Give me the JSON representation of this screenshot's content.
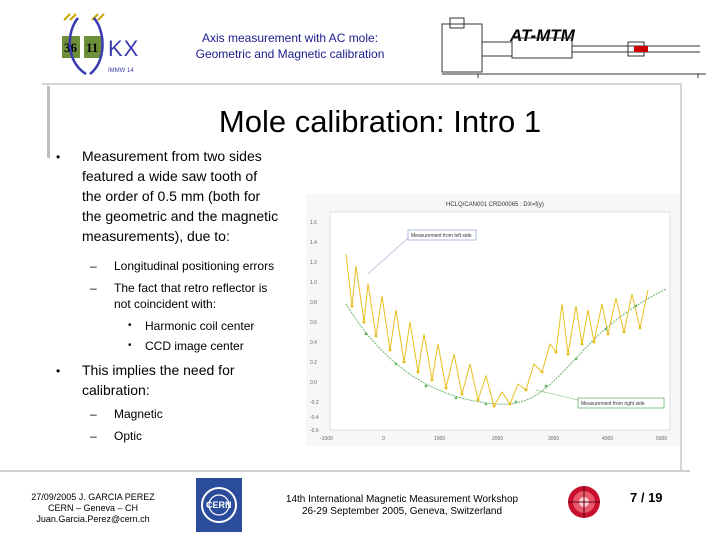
{
  "header": {
    "title_line1": "Axis measurement with AC mole:",
    "title_line2": "Geometric and Magnetic calibration",
    "project": "AT-MTM"
  },
  "slide": {
    "title": "Mole calibration: Intro 1",
    "bullets": [
      {
        "lines": [
          "Measurement from two sides",
          "featured a wide saw tooth of",
          "the order of 0.5 mm (both for",
          "the geometric and the magnetic",
          "measurements), due to:"
        ],
        "subitems": [
          {
            "lines": [
              "Longitudinal positioning errors"
            ]
          },
          {
            "lines": [
              "The fact that retro reflector is",
              "not coincident with:"
            ],
            "subsub": [
              "Harmonic coil center",
              "CCD image center"
            ]
          }
        ]
      },
      {
        "lines": [
          "This implies the need for",
          "calibration:"
        ],
        "subitems": [
          {
            "lines": [
              "Magnetic"
            ]
          },
          {
            "lines": [
              "Optic"
            ]
          }
        ]
      }
    ]
  },
  "chart": {
    "title": "HCLQ/CAN001 CRD00065 : DX=f(y)",
    "annotation_left": "Measurement from left side",
    "annotation_right": "Measurement from right side",
    "y_ticks": [
      "1.6",
      "1.4",
      "1.2",
      "1.0",
      "0.8",
      "0.6",
      "0.4",
      "0.2",
      "0.0",
      "-0.2",
      "-0.4",
      "-0.6"
    ],
    "x_ticks": [
      "-1000",
      "0",
      "1000",
      "2000",
      "3000",
      "4000",
      "5000"
    ]
  },
  "footer": {
    "date_author": "27/09/2005 J. GARCIA PEREZ",
    "org": "CERN – Geneva – CH",
    "email": "Juan.Garcia.Perez@cern.ch",
    "event_line1": "14th International Magnetic Measurement Workshop",
    "event_line2": "26-29 September 2005, Geneva, Switzerland",
    "page": "7 / 19"
  },
  "colors": {
    "header_text": "#1a1a8c",
    "left_series": "#e8c020",
    "right_series": "#6db56d",
    "callout": "#9aa7d8"
  },
  "icons": [
    "imm-workshop-logo",
    "cern-logo",
    "magnet-logo",
    "atmtm-mole-drawing"
  ]
}
